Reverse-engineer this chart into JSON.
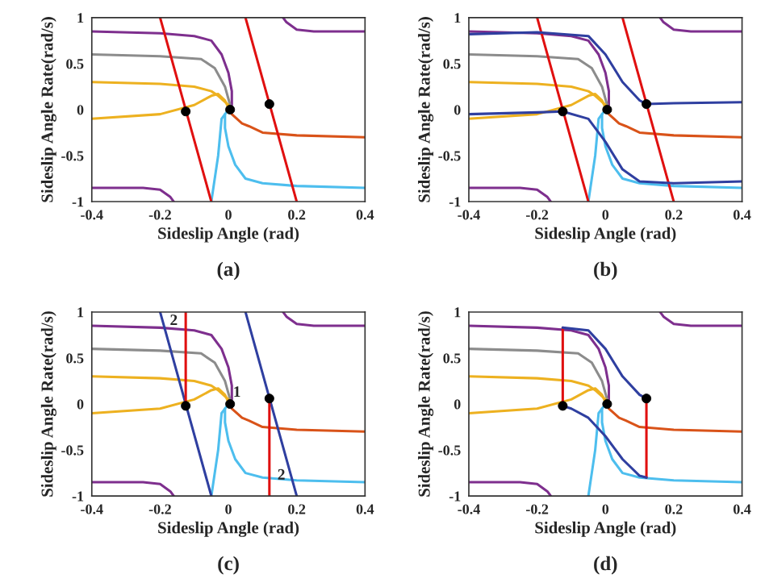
{
  "chart_data": [
    {
      "type": "line",
      "title": "(a)",
      "xlabel": "Sideslip Angle (rad)",
      "ylabel": "Sideslip Angle Rate(rad/s)",
      "xlim": [
        -0.4,
        0.4
      ],
      "ylim": [
        -1,
        1
      ],
      "xticks": [
        -0.4,
        -0.2,
        0,
        0.2,
        0.4
      ],
      "yticks": [
        -1,
        -0.5,
        0,
        0.5,
        1
      ],
      "grid": false,
      "legend": false,
      "series": [
        {
          "color": "#7e2f8e",
          "x": [
            -0.4,
            -0.2,
            -0.1,
            -0.05,
            -0.02,
            0,
            0.01,
            0.01
          ],
          "values": [
            0.85,
            0.83,
            0.8,
            0.75,
            0.6,
            0.4,
            0.2,
            0.05
          ]
        },
        {
          "color": "#8c8c8c",
          "x": [
            -0.4,
            -0.2,
            -0.08,
            -0.04,
            -0.01,
            0.005
          ],
          "values": [
            0.6,
            0.58,
            0.55,
            0.45,
            0.25,
            0.05
          ]
        },
        {
          "color": "#edb120",
          "x": [
            -0.4,
            -0.2,
            -0.1,
            -0.05,
            -0.03,
            0
          ],
          "values": [
            0.3,
            0.28,
            0.25,
            0.2,
            0.15,
            0.05
          ]
        },
        {
          "color": "#edb120",
          "x": [
            -0.4,
            -0.2,
            -0.1,
            -0.05,
            -0.03,
            -0.01,
            0
          ],
          "values": [
            -0.1,
            -0.05,
            0.05,
            0.15,
            0.17,
            0.1,
            0.02
          ]
        },
        {
          "color": "#7e2f8e",
          "x": [
            -0.4,
            -0.25,
            -0.2,
            -0.17,
            -0.16
          ],
          "values": [
            -0.85,
            -0.85,
            -0.87,
            -0.95,
            -1
          ]
        },
        {
          "color": "#4dbeee",
          "x": [
            0.4,
            0.2,
            0.1,
            0.05,
            0.02,
            0,
            -0.01,
            -0.01
          ],
          "values": [
            -0.85,
            -0.83,
            -0.8,
            -0.75,
            -0.6,
            -0.4,
            -0.2,
            -0.05
          ]
        },
        {
          "color": "#d95319",
          "x": [
            0.4,
            0.2,
            0.1,
            0.06,
            0.04,
            0.01
          ],
          "values": [
            -0.3,
            -0.28,
            -0.25,
            -0.18,
            -0.15,
            -0.05
          ]
        },
        {
          "color": "#7e2f8e",
          "x": [
            0.4,
            0.25,
            0.2,
            0.17,
            0.16
          ],
          "values": [
            0.85,
            0.85,
            0.87,
            0.95,
            1
          ]
        },
        {
          "color": "#4dbeee",
          "x": [
            -0.05,
            -0.03,
            -0.02,
            0
          ],
          "values": [
            -1,
            -0.5,
            -0.1,
            0
          ]
        },
        {
          "color": "#e01010",
          "x": [
            -0.2,
            -0.05
          ],
          "values": [
            1,
            -1
          ]
        },
        {
          "color": "#e01010",
          "x": [
            0.05,
            0.2
          ],
          "values": [
            1,
            -1
          ]
        },
        {
          "type": "scatter",
          "marker": "circle",
          "color": "#000000",
          "x": [
            -0.125,
            0.005,
            0.12
          ],
          "values": [
            -0.02,
            0,
            0.06
          ]
        }
      ]
    },
    {
      "type": "line",
      "title": "(b)",
      "xlabel": "Sideslip Angle (rad)",
      "ylabel": "Sideslip Angle Rate(rad/s)",
      "xlim": [
        -0.4,
        0.4
      ],
      "ylim": [
        -1,
        1
      ],
      "xticks": [
        -0.4,
        -0.2,
        0,
        0.2,
        0.4
      ],
      "yticks": [
        -1,
        -0.5,
        0,
        0.5,
        1
      ],
      "grid": false,
      "legend": false,
      "series": [
        {
          "color": "#7e2f8e",
          "x": [
            -0.4,
            -0.2,
            -0.1,
            -0.05,
            -0.02,
            0,
            0.01,
            0.01
          ],
          "values": [
            0.85,
            0.83,
            0.8,
            0.75,
            0.6,
            0.4,
            0.2,
            0.05
          ]
        },
        {
          "color": "#8c8c8c",
          "x": [
            -0.4,
            -0.2,
            -0.08,
            -0.04,
            -0.01,
            0.005
          ],
          "values": [
            0.6,
            0.58,
            0.55,
            0.45,
            0.25,
            0.05
          ]
        },
        {
          "color": "#edb120",
          "x": [
            -0.4,
            -0.2,
            -0.1,
            -0.05,
            -0.03,
            0
          ],
          "values": [
            0.3,
            0.28,
            0.25,
            0.2,
            0.15,
            0.05
          ]
        },
        {
          "color": "#edb120",
          "x": [
            -0.4,
            -0.2,
            -0.1,
            -0.05,
            -0.03,
            -0.01,
            0
          ],
          "values": [
            -0.1,
            -0.05,
            0.05,
            0.15,
            0.17,
            0.1,
            0.02
          ]
        },
        {
          "color": "#7e2f8e",
          "x": [
            -0.4,
            -0.25,
            -0.2,
            -0.17,
            -0.16
          ],
          "values": [
            -0.85,
            -0.85,
            -0.87,
            -0.95,
            -1
          ]
        },
        {
          "color": "#4dbeee",
          "x": [
            0.4,
            0.2,
            0.1,
            0.05,
            0.02,
            0,
            -0.01,
            -0.01
          ],
          "values": [
            -0.85,
            -0.83,
            -0.8,
            -0.75,
            -0.6,
            -0.4,
            -0.2,
            -0.05
          ]
        },
        {
          "color": "#d95319",
          "x": [
            0.4,
            0.2,
            0.1,
            0.06,
            0.04,
            0.01
          ],
          "values": [
            -0.3,
            -0.28,
            -0.25,
            -0.18,
            -0.15,
            -0.05
          ]
        },
        {
          "color": "#7e2f8e",
          "x": [
            0.4,
            0.25,
            0.2,
            0.17,
            0.16
          ],
          "values": [
            0.85,
            0.85,
            0.87,
            0.95,
            1
          ]
        },
        {
          "color": "#4dbeee",
          "x": [
            -0.05,
            -0.03,
            -0.02,
            0
          ],
          "values": [
            -1,
            -0.5,
            -0.1,
            0
          ]
        },
        {
          "color": "#e01010",
          "x": [
            -0.2,
            -0.05
          ],
          "values": [
            1,
            -1
          ]
        },
        {
          "color": "#e01010",
          "x": [
            0.05,
            0.2
          ],
          "values": [
            1,
            -1
          ]
        },
        {
          "color": "#2f3fa0",
          "x": [
            -0.4,
            -0.2,
            -0.05,
            0,
            0.05,
            0.1,
            0.12,
            0.2,
            0.4
          ],
          "values": [
            0.82,
            0.84,
            0.8,
            0.6,
            0.3,
            0.1,
            0.06,
            0.07,
            0.08
          ]
        },
        {
          "color": "#2f3fa0",
          "x": [
            -0.4,
            -0.2,
            -0.125,
            -0.05,
            0,
            0.05,
            0.1,
            0.2,
            0.4
          ],
          "values": [
            -0.05,
            -0.03,
            -0.02,
            -0.1,
            -0.35,
            -0.65,
            -0.78,
            -0.8,
            -0.78
          ]
        },
        {
          "type": "scatter",
          "marker": "circle",
          "color": "#000000",
          "x": [
            -0.125,
            0.005,
            0.12
          ],
          "values": [
            -0.02,
            0,
            0.06
          ]
        }
      ]
    },
    {
      "type": "line",
      "title": "(c)",
      "xlabel": "Sideslip Angle (rad)",
      "ylabel": "Sideslip Angle Rate(rad/s)",
      "xlim": [
        -0.4,
        0.4
      ],
      "ylim": [
        -1,
        1
      ],
      "xticks": [
        -0.4,
        -0.2,
        0,
        0.2,
        0.4
      ],
      "yticks": [
        -1,
        -0.5,
        0,
        0.5,
        1
      ],
      "grid": false,
      "legend": false,
      "annotations": [
        {
          "text": "2",
          "x": -0.16,
          "y": 0.9
        },
        {
          "text": "1",
          "x": 0.025,
          "y": 0.12
        },
        {
          "text": "2",
          "x": 0.155,
          "y": -0.78
        }
      ],
      "series": [
        {
          "color": "#7e2f8e",
          "x": [
            -0.4,
            -0.2,
            -0.1,
            -0.05,
            -0.02,
            0,
            0.01,
            0.01
          ],
          "values": [
            0.85,
            0.83,
            0.8,
            0.75,
            0.6,
            0.4,
            0.2,
            0.05
          ]
        },
        {
          "color": "#8c8c8c",
          "x": [
            -0.4,
            -0.2,
            -0.08,
            -0.04,
            -0.01,
            0.005
          ],
          "values": [
            0.6,
            0.58,
            0.55,
            0.45,
            0.25,
            0.05
          ]
        },
        {
          "color": "#edb120",
          "x": [
            -0.4,
            -0.2,
            -0.1,
            -0.05,
            -0.03,
            0
          ],
          "values": [
            0.3,
            0.28,
            0.25,
            0.2,
            0.15,
            0.05
          ]
        },
        {
          "color": "#edb120",
          "x": [
            -0.4,
            -0.2,
            -0.1,
            -0.05,
            -0.03,
            -0.01,
            0
          ],
          "values": [
            -0.1,
            -0.05,
            0.05,
            0.15,
            0.17,
            0.1,
            0.02
          ]
        },
        {
          "color": "#7e2f8e",
          "x": [
            -0.4,
            -0.25,
            -0.2,
            -0.17,
            -0.16
          ],
          "values": [
            -0.85,
            -0.85,
            -0.87,
            -0.95,
            -1
          ]
        },
        {
          "color": "#4dbeee",
          "x": [
            0.4,
            0.2,
            0.1,
            0.05,
            0.02,
            0,
            -0.01,
            -0.01
          ],
          "values": [
            -0.85,
            -0.83,
            -0.8,
            -0.75,
            -0.6,
            -0.4,
            -0.2,
            -0.05
          ]
        },
        {
          "color": "#d95319",
          "x": [
            0.4,
            0.2,
            0.1,
            0.06,
            0.04,
            0.01
          ],
          "values": [
            -0.3,
            -0.28,
            -0.25,
            -0.18,
            -0.15,
            -0.05
          ]
        },
        {
          "color": "#7e2f8e",
          "x": [
            0.4,
            0.25,
            0.2,
            0.17,
            0.16
          ],
          "values": [
            0.85,
            0.85,
            0.87,
            0.95,
            1
          ]
        },
        {
          "color": "#4dbeee",
          "x": [
            -0.05,
            -0.03,
            -0.02,
            0
          ],
          "values": [
            -1,
            -0.5,
            -0.1,
            0
          ]
        },
        {
          "color": "#2f3fa0",
          "x": [
            -0.2,
            -0.05
          ],
          "values": [
            1,
            -1
          ]
        },
        {
          "color": "#2f3fa0",
          "x": [
            0.05,
            0.2
          ],
          "values": [
            1,
            -1
          ]
        },
        {
          "color": "#e01010",
          "x": [
            -0.125,
            -0.125
          ],
          "values": [
            -0.02,
            1
          ]
        },
        {
          "color": "#e01010",
          "x": [
            0.12,
            0.12
          ],
          "values": [
            0.06,
            -1
          ]
        },
        {
          "type": "scatter",
          "marker": "circle",
          "color": "#000000",
          "x": [
            -0.125,
            0.005,
            0.12
          ],
          "values": [
            -0.02,
            0,
            0.06
          ]
        }
      ]
    },
    {
      "type": "line",
      "title": "(d)",
      "xlabel": "Sideslip Angle (rad)",
      "ylabel": "Sideslip Angle Rate(rad/s)",
      "xlim": [
        -0.4,
        0.4
      ],
      "ylim": [
        -1,
        1
      ],
      "xticks": [
        -0.4,
        -0.2,
        0,
        0.2,
        0.4
      ],
      "yticks": [
        -1,
        -0.5,
        0,
        0.5,
        1
      ],
      "grid": false,
      "legend": false,
      "series": [
        {
          "color": "#7e2f8e",
          "x": [
            -0.4,
            -0.2,
            -0.1,
            -0.05,
            -0.02,
            0,
            0.01,
            0.01
          ],
          "values": [
            0.85,
            0.83,
            0.8,
            0.75,
            0.6,
            0.4,
            0.2,
            0.05
          ]
        },
        {
          "color": "#8c8c8c",
          "x": [
            -0.4,
            -0.2,
            -0.08,
            -0.04,
            -0.01,
            0.005
          ],
          "values": [
            0.6,
            0.58,
            0.55,
            0.45,
            0.25,
            0.05
          ]
        },
        {
          "color": "#edb120",
          "x": [
            -0.4,
            -0.2,
            -0.1,
            -0.05,
            -0.03,
            0
          ],
          "values": [
            0.3,
            0.28,
            0.25,
            0.2,
            0.15,
            0.05
          ]
        },
        {
          "color": "#edb120",
          "x": [
            -0.4,
            -0.2,
            -0.1,
            -0.05,
            -0.03,
            -0.01,
            0
          ],
          "values": [
            -0.1,
            -0.05,
            0.05,
            0.15,
            0.17,
            0.1,
            0.02
          ]
        },
        {
          "color": "#7e2f8e",
          "x": [
            -0.4,
            -0.25,
            -0.2,
            -0.17,
            -0.16
          ],
          "values": [
            -0.85,
            -0.85,
            -0.87,
            -0.95,
            -1
          ]
        },
        {
          "color": "#4dbeee",
          "x": [
            0.4,
            0.2,
            0.1,
            0.05,
            0.02,
            0,
            -0.01,
            -0.01
          ],
          "values": [
            -0.85,
            -0.83,
            -0.8,
            -0.75,
            -0.6,
            -0.4,
            -0.2,
            -0.05
          ]
        },
        {
          "color": "#d95319",
          "x": [
            0.4,
            0.2,
            0.1,
            0.06,
            0.04,
            0.01
          ],
          "values": [
            -0.3,
            -0.28,
            -0.25,
            -0.18,
            -0.15,
            -0.05
          ]
        },
        {
          "color": "#7e2f8e",
          "x": [
            0.4,
            0.25,
            0.2,
            0.17,
            0.16
          ],
          "values": [
            0.85,
            0.85,
            0.87,
            0.95,
            1
          ]
        },
        {
          "color": "#4dbeee",
          "x": [
            -0.05,
            -0.03,
            -0.02,
            0
          ],
          "values": [
            -1,
            -0.5,
            -0.1,
            0
          ]
        },
        {
          "color": "#e01010",
          "x": [
            -0.125,
            -0.125
          ],
          "values": [
            -0.02,
            0.83
          ]
        },
        {
          "color": "#e01010",
          "x": [
            0.12,
            0.12
          ],
          "values": [
            0.06,
            -0.8
          ]
        },
        {
          "color": "#2f3fa0",
          "x": [
            -0.125,
            -0.05,
            0,
            0.05,
            0.1,
            0.12
          ],
          "values": [
            0.83,
            0.8,
            0.6,
            0.3,
            0.1,
            0.06
          ]
        },
        {
          "color": "#2f3fa0",
          "x": [
            -0.125,
            -0.1,
            -0.05,
            0,
            0.05,
            0.1,
            0.12
          ],
          "values": [
            -0.02,
            -0.05,
            -0.15,
            -0.35,
            -0.6,
            -0.78,
            -0.8
          ]
        },
        {
          "type": "scatter",
          "marker": "circle",
          "color": "#000000",
          "x": [
            -0.125,
            0.005,
            0.12
          ],
          "values": [
            -0.02,
            0,
            0.06
          ]
        }
      ]
    }
  ]
}
